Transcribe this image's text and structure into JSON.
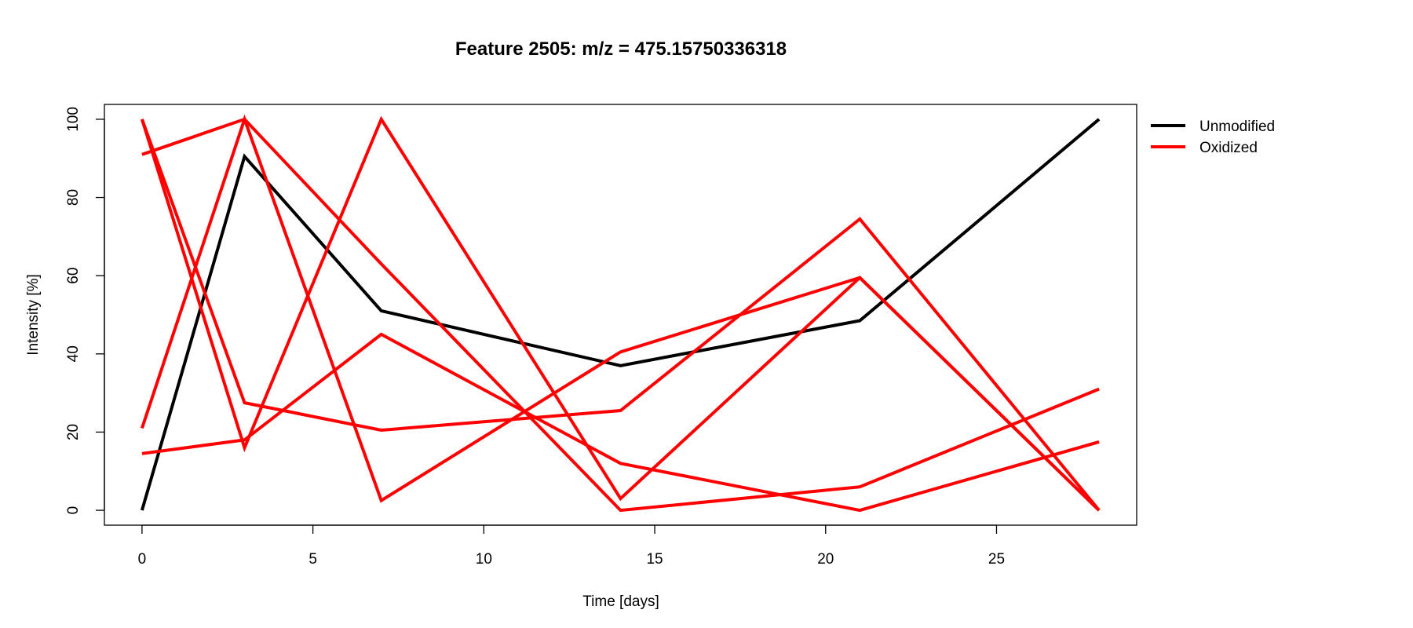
{
  "chart_data": {
    "type": "line",
    "title": "Feature 2505: m/z = 475.15750336318",
    "xlabel": "Time [days]",
    "ylabel": "Intensity [%]",
    "xlim": [
      -1.1,
      29.1
    ],
    "ylim": [
      -3.8,
      103.8
    ],
    "x_ticks": [
      0,
      5,
      10,
      15,
      20,
      25
    ],
    "y_ticks": [
      0,
      20,
      40,
      60,
      80,
      100
    ],
    "grid": false,
    "legend_position": "outside-right",
    "legend": [
      {
        "label": "Unmodified",
        "color": "#000000"
      },
      {
        "label": "Oxidized",
        "color": "#ff0000"
      }
    ],
    "x": [
      0,
      3,
      7,
      14,
      21,
      28
    ],
    "series": [
      {
        "group": "Unmodified",
        "color": "#000000",
        "values": [
          0,
          90.5,
          51,
          37,
          48.5,
          100
        ]
      },
      {
        "group": "Oxidized",
        "color": "#ff0000",
        "values": [
          100,
          16,
          100,
          3,
          59.5,
          0
        ]
      },
      {
        "group": "Oxidized",
        "color": "#ff0000",
        "values": [
          91,
          100,
          63,
          0,
          6,
          31
        ]
      },
      {
        "group": "Oxidized",
        "color": "#ff0000",
        "values": [
          14.5,
          18,
          45,
          12,
          0,
          17.5
        ]
      },
      {
        "group": "Oxidized",
        "color": "#ff0000",
        "values": [
          21,
          100,
          2.5,
          40.5,
          59.5,
          0
        ]
      },
      {
        "group": "Oxidized",
        "color": "#ff0000",
        "values": [
          100,
          27.5,
          20.5,
          25.5,
          74.5,
          0
        ]
      }
    ]
  }
}
